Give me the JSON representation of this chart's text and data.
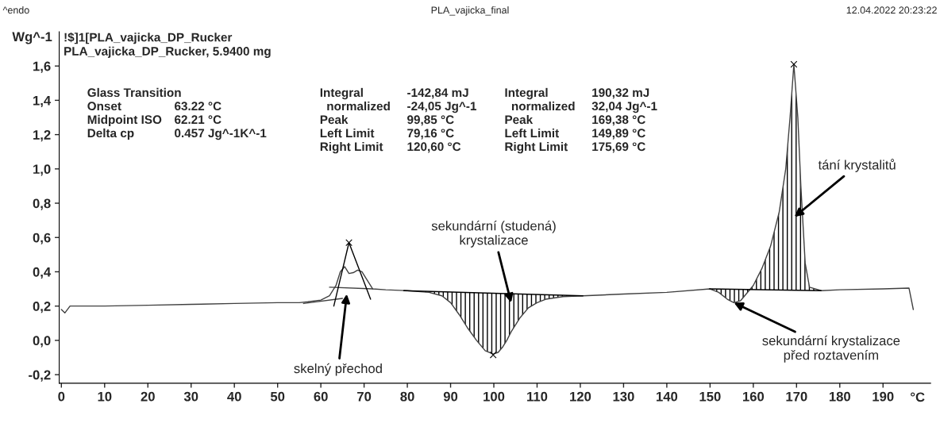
{
  "chart_data": {
    "type": "line",
    "title": "PLA_vajicka_final",
    "subtitle": "!$]1[PLA_vajicka_DP_Rucker\nPLA_vajicka_DP_Rucker, 5.9400 mg",
    "xlabel": "°C",
    "ylabel": "Wg^-1",
    "xlim": [
      -0.5,
      201
    ],
    "xticks": [
      0,
      10,
      20,
      30,
      40,
      50,
      60,
      70,
      80,
      90,
      100,
      110,
      120,
      130,
      140,
      150,
      160,
      170,
      180,
      190
    ],
    "ylim": [
      -0.25,
      1.8
    ],
    "yticks": [
      {
        "value": -0.2,
        "label": "-0,2"
      },
      {
        "value": 0.0,
        "label": "0,0"
      },
      {
        "value": 0.2,
        "label": "0,2"
      },
      {
        "value": 0.4,
        "label": "0,4"
      },
      {
        "value": 0.6,
        "label": "0,6"
      },
      {
        "value": 0.8,
        "label": "0,8"
      },
      {
        "value": 1.0,
        "label": "1,0"
      },
      {
        "value": 1.2,
        "label": "1,2"
      },
      {
        "value": 1.4,
        "label": "1,4"
      },
      {
        "value": 1.6,
        "label": "1,6"
      }
    ],
    "grid": false,
    "legend": false,
    "series": [
      {
        "color": "#404040",
        "x": [
          0,
          0.8,
          2,
          5,
          10,
          20,
          30,
          40,
          50,
          55,
          57,
          60,
          62,
          63.5,
          64.5,
          65.5,
          66.5,
          67.5,
          68.5,
          69.5,
          70.5,
          72,
          75,
          80,
          85,
          88,
          90,
          92,
          94,
          96,
          98,
          99.85,
          101,
          102,
          103,
          104,
          106,
          108,
          110,
          112,
          116,
          120.6,
          130,
          140,
          150,
          152,
          154,
          155.5,
          157,
          158,
          160,
          162,
          164,
          166,
          167.5,
          168.5,
          169.38,
          170.3,
          171,
          172,
          173,
          175.69,
          180,
          190,
          196,
          197
        ],
        "values": [
          0.18,
          0.16,
          0.2,
          0.2,
          0.2,
          0.205,
          0.21,
          0.215,
          0.22,
          0.22,
          0.225,
          0.235,
          0.26,
          0.32,
          0.4,
          0.43,
          0.39,
          0.395,
          0.41,
          0.4,
          0.36,
          0.3,
          0.295,
          0.29,
          0.28,
          0.26,
          0.22,
          0.15,
          0.07,
          -0.0,
          -0.06,
          -0.08,
          -0.07,
          -0.04,
          0.0,
          0.05,
          0.13,
          0.19,
          0.22,
          0.24,
          0.255,
          0.26,
          0.27,
          0.28,
          0.3,
          0.28,
          0.24,
          0.22,
          0.23,
          0.26,
          0.32,
          0.42,
          0.55,
          0.75,
          1.0,
          1.3,
          1.61,
          1.3,
          0.9,
          0.45,
          0.31,
          0.29,
          0.295,
          0.3,
          0.305,
          0.18
        ]
      },
      {
        "type": "line",
        "color": "#000000",
        "x": [
          79.16,
          120.6
        ],
        "values": [
          0.29,
          0.26
        ]
      },
      {
        "type": "line",
        "color": "#000000",
        "x": [
          149.89,
          175.69
        ],
        "values": [
          0.3,
          0.29
        ]
      },
      {
        "type": "line",
        "color": "#404040",
        "x": [
          56,
          65
        ],
        "values": [
          0.215,
          0.245
        ]
      },
      {
        "type": "line",
        "color": "#404040",
        "x": [
          62,
          72
        ],
        "values": [
          0.31,
          0.3
        ]
      },
      {
        "type": "line",
        "color": "#000000",
        "x": [
          63,
          66.5,
          71.5
        ],
        "values": [
          0.2,
          0.57,
          0.24
        ]
      },
      {
        "type": "scatter",
        "color": "#000000",
        "marker": "cross",
        "x": [
          66.5,
          99.85,
          169.38
        ],
        "values": [
          0.57,
          -0.085,
          1.61
        ]
      }
    ],
    "annotations": [
      "^endo",
      "12.04.2022 20:23:22",
      "Glass Transition\nOnset\nMidpoint ISO\nDelta cp",
      "\n63.22 °C\n62.21 °C\n0.457 Jg^-1K^-1",
      "Integral\n  normalized\nPeak\nLeft Limit\nRight Limit",
      "-142,84 mJ\n-24,05 Jg^-1\n99,85 °C\n79,16 °C\n120,60 °C",
      "Integral\n  normalized\nPeak\nLeft Limit\nRight Limit",
      "190,32 mJ\n32,04 Jg^-1\n169,38 °C\n149,89 °C\n175,69 °C",
      "skelný přechod",
      "sekundární (studená)\nkrystalizace",
      "tání krystalitů",
      {
        "text": "sekundární krystalizace\npřed roztavením",
        "x": 155.5,
        "y": 0.22
      }
    ]
  }
}
